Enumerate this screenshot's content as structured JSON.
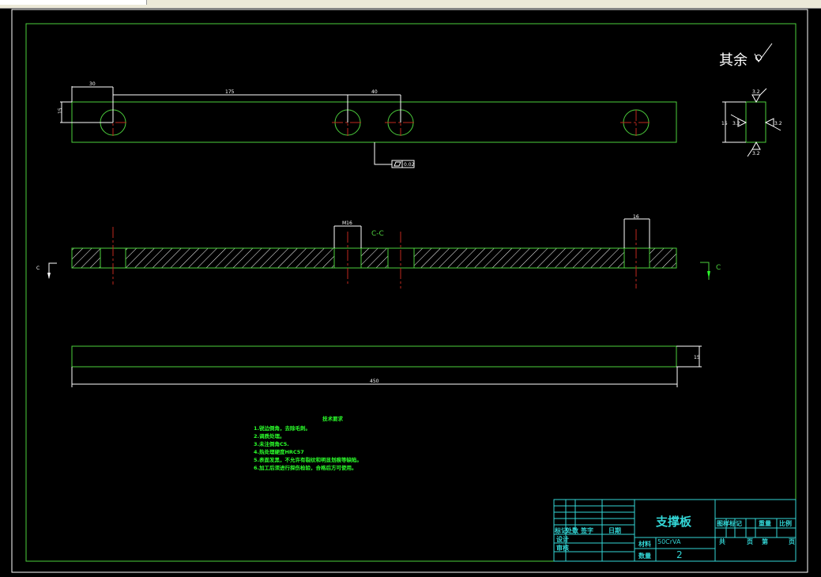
{
  "drawing": {
    "colors": {
      "background": "#000000",
      "outline": "#4ccf3c",
      "dimension": "#ffffff",
      "centerline": "#c0281e",
      "titleblock": "#33d6d6"
    },
    "roughness_note": {
      "label": "其余",
      "symbol": "roughness-icon"
    },
    "roughness_values": [
      "3.2",
      "3.2",
      "3.2",
      "3.2"
    ],
    "top_view": {
      "dims": {
        "left": "30",
        "middle": "175",
        "right": "40",
        "height": "15"
      },
      "flatness_tolerance": "0.02"
    },
    "section_view": {
      "label": "C-C",
      "hole_dims": {
        "thread": "M16",
        "bore": "16"
      },
      "cut_marks": [
        "C",
        "C"
      ]
    },
    "bottom_view": {
      "length": "450",
      "thickness": "15"
    },
    "side_view": {
      "height": "15"
    },
    "tech_requirements": {
      "title": "技术要求",
      "items": [
        "1.锐边倒角，去除毛刺。",
        "2.调质处理。",
        "3.未注倒角C5.",
        "4.热处理硬度HRC57",
        "5.表面发黑，不允许有裂纹和明显划痕等缺陷。",
        "6.加工后须进行探伤检验，合格后方可使用。"
      ]
    },
    "title_block": {
      "part_name": "支撑板",
      "material_label": "材料",
      "material": "50CrVA",
      "quantity_label": "数量",
      "quantity": "2",
      "mark": "标记",
      "count": "处数",
      "sign": "签字",
      "date": "日期",
      "design": "设计",
      "review": "审核",
      "drawing_mark": "图样标记",
      "weight": "重量",
      "scale": "比例",
      "total": "共",
      "page": "页",
      "sheet": "第",
      "page2": "页"
    }
  }
}
